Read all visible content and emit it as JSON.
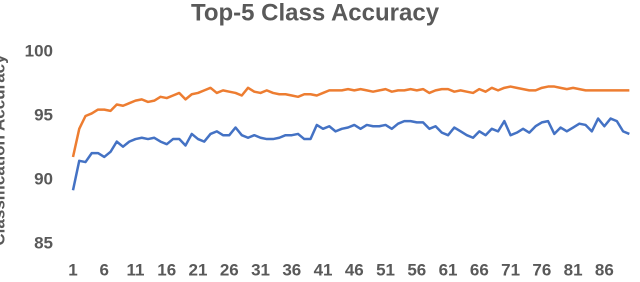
{
  "chart_data": {
    "type": "line",
    "title": "Top-5 Class Accuracy",
    "y_label": "Classification Accuracy",
    "x": [
      1,
      2,
      3,
      4,
      5,
      6,
      7,
      8,
      9,
      10,
      11,
      12,
      13,
      14,
      15,
      16,
      17,
      18,
      19,
      20,
      21,
      22,
      23,
      24,
      25,
      26,
      27,
      28,
      29,
      30,
      31,
      32,
      33,
      34,
      35,
      36,
      37,
      38,
      39,
      40,
      41,
      42,
      43,
      44,
      45,
      46,
      47,
      48,
      49,
      50,
      51,
      52,
      53,
      54,
      55,
      56,
      57,
      58,
      59,
      60,
      61,
      62,
      63,
      64,
      65,
      66,
      67,
      68,
      69,
      70,
      71,
      72,
      73,
      74,
      75,
      76,
      77,
      78,
      79,
      80,
      81,
      82,
      83,
      84,
      85,
      86,
      87,
      88,
      89,
      90
    ],
    "series": [
      {
        "color": "#ed7d31",
        "values": [
          91.8,
          94.0,
          95.0,
          95.2,
          95.5,
          95.5,
          95.4,
          95.9,
          95.8,
          96.0,
          96.2,
          96.3,
          96.1,
          96.2,
          96.5,
          96.4,
          96.6,
          96.8,
          96.3,
          96.7,
          96.8,
          97.0,
          97.2,
          96.8,
          97.0,
          96.9,
          96.8,
          96.6,
          97.2,
          96.9,
          96.8,
          97.0,
          96.8,
          96.7,
          96.7,
          96.6,
          96.5,
          96.7,
          96.7,
          96.6,
          96.8,
          97.0,
          97.0,
          97.0,
          97.1,
          97.0,
          97.1,
          97.0,
          96.9,
          97.0,
          97.1,
          96.9,
          97.0,
          97.0,
          97.1,
          97.0,
          97.1,
          96.8,
          97.0,
          97.1,
          97.1,
          96.9,
          97.0,
          96.9,
          96.8,
          97.1,
          96.9,
          97.2,
          97.0,
          97.2,
          97.3,
          97.2,
          97.1,
          97.0,
          97.0,
          97.2,
          97.3,
          97.3,
          97.2,
          97.1,
          97.2,
          97.1,
          97.0,
          97.0,
          97.0,
          97.0,
          97.0,
          97.0,
          97.0,
          97.0
        ]
      },
      {
        "color": "#4472c4",
        "values": [
          89.2,
          91.5,
          91.4,
          92.1,
          92.1,
          91.8,
          92.2,
          93.0,
          92.6,
          93.0,
          93.2,
          93.3,
          93.2,
          93.3,
          93.0,
          92.8,
          93.2,
          93.2,
          92.7,
          93.6,
          93.2,
          93.0,
          93.6,
          93.8,
          93.5,
          93.5,
          94.1,
          93.5,
          93.3,
          93.5,
          93.3,
          93.2,
          93.2,
          93.3,
          93.5,
          93.5,
          93.6,
          93.2,
          93.2,
          94.3,
          94.0,
          94.2,
          93.8,
          94.0,
          94.1,
          94.3,
          94.0,
          94.3,
          94.2,
          94.2,
          94.3,
          94.0,
          94.4,
          94.6,
          94.6,
          94.5,
          94.5,
          94.0,
          94.2,
          93.7,
          93.5,
          94.1,
          93.8,
          93.5,
          93.3,
          93.8,
          93.5,
          94.0,
          93.8,
          94.6,
          93.5,
          93.7,
          94.0,
          93.7,
          94.2,
          94.5,
          94.6,
          93.6,
          94.1,
          93.8,
          94.1,
          94.4,
          94.3,
          93.8,
          94.8,
          94.2,
          94.8,
          94.6,
          93.8,
          93.6
        ]
      }
    ],
    "xlim": [
      1,
      91
    ],
    "xticks": [
      1,
      6,
      11,
      16,
      21,
      26,
      31,
      36,
      41,
      46,
      51,
      56,
      61,
      66,
      71,
      76,
      81,
      86
    ],
    "ylim": [
      85,
      100
    ],
    "yticks": [
      85,
      90,
      95,
      100
    ]
  }
}
